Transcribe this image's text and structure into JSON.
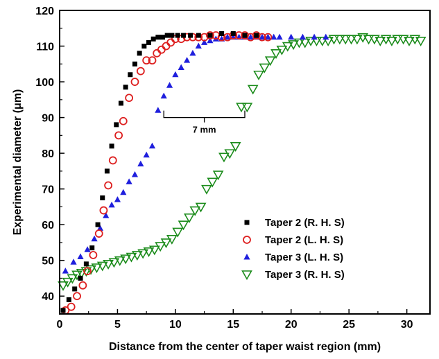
{
  "chart_data": {
    "type": "scatter",
    "xlabel": "Distance from the center of taper waist region (mm)",
    "ylabel": "Experimental diameter (μm)",
    "xlim": [
      0,
      32
    ],
    "ylim": [
      35,
      120
    ],
    "xticks": [
      0,
      5,
      10,
      15,
      20,
      25,
      30
    ],
    "yticks": [
      40,
      50,
      60,
      70,
      80,
      90,
      100,
      110,
      120
    ],
    "grid": false,
    "legend_position": "bottom-right",
    "annotation": {
      "text": "7 mm",
      "x_start": 9,
      "x_end": 16,
      "y": 90
    },
    "series": [
      {
        "name": "Taper 2 (R. H. S)",
        "marker": "filled-square",
        "color": "#000000",
        "x": [
          0.3,
          0.8,
          1.3,
          1.8,
          2.3,
          2.8,
          3.3,
          3.7,
          4.1,
          4.5,
          4.9,
          5.3,
          5.7,
          6.1,
          6.5,
          6.9,
          7.3,
          7.7,
          8.1,
          8.5,
          8.9,
          9.3,
          9.7,
          10.2,
          10.7,
          11.3,
          12,
          13,
          14,
          15,
          16,
          17
        ],
        "y": [
          36,
          39,
          42,
          45,
          49,
          53.5,
          60,
          67.5,
          75,
          82,
          88,
          94,
          98.5,
          102,
          105,
          108,
          110,
          111,
          112,
          112.5,
          112.5,
          113,
          113,
          113,
          113,
          113,
          113,
          113,
          113.5,
          113.5,
          113,
          113
        ]
      },
      {
        "name": "Taper 2 (L. H. S)",
        "marker": "open-circle",
        "color": "#dd1f1f",
        "x": [
          0.5,
          1,
          1.5,
          2,
          2.4,
          2.9,
          3.4,
          3.8,
          4.2,
          4.6,
          5.1,
          5.5,
          6,
          6.5,
          7,
          7.5,
          8,
          8.4,
          8.8,
          9.2,
          9.6,
          10,
          10.5,
          11,
          11.5,
          12,
          12.5,
          13,
          13.5,
          14,
          14.5,
          15,
          15.5,
          16,
          16.5,
          17,
          17.5,
          18
        ],
        "y": [
          36,
          37,
          40,
          43,
          47,
          51.5,
          57.5,
          64,
          71,
          78,
          85,
          89,
          95.5,
          100,
          103,
          106,
          106,
          108,
          109,
          110,
          111,
          112,
          112,
          112.5,
          112.5,
          112.5,
          112.5,
          113,
          113,
          112.5,
          112.5,
          113,
          113,
          113,
          112.5,
          113,
          112.5,
          112.5
        ]
      },
      {
        "name": "Taper 3 (L. H. S)",
        "marker": "filled-triangle",
        "color": "#1f1fdd",
        "x": [
          0.5,
          1.2,
          1.8,
          2.4,
          3,
          3.5,
          4,
          4.5,
          5,
          5.5,
          6,
          6.5,
          7,
          7.5,
          8,
          8.5,
          9,
          9.5,
          10,
          10.5,
          11,
          11.5,
          12,
          12.5,
          13,
          13.5,
          14,
          14.5,
          15,
          15.5,
          16,
          16.5,
          17,
          17.5,
          18,
          18.5,
          19,
          20,
          21,
          22,
          23
        ],
        "y": [
          47,
          49.5,
          51,
          53,
          56,
          59,
          62.5,
          65.5,
          67,
          69,
          72,
          74,
          77,
          79.5,
          82,
          92,
          96,
          99,
          102,
          104,
          106,
          108,
          110,
          111,
          111.5,
          112,
          112,
          112.5,
          112.5,
          112.5,
          112.5,
          112.5,
          112.5,
          112.5,
          112.5,
          112.5,
          112.5,
          112.5,
          112.5,
          112.5,
          112.5
        ]
      },
      {
        "name": "Taper 3 (R. H. S)",
        "marker": "open-triangle-down",
        "color": "#1c8c1c",
        "x": [
          0.3,
          0.7,
          1.1,
          1.5,
          1.9,
          2.3,
          2.7,
          3.2,
          3.7,
          4.2,
          4.7,
          5.2,
          5.7,
          6.2,
          6.7,
          7.2,
          7.7,
          8.2,
          8.7,
          9.2,
          9.7,
          10.2,
          10.7,
          11.2,
          11.7,
          12.2,
          12.7,
          13.2,
          13.7,
          14.2,
          14.7,
          15.2,
          15.7,
          16.2,
          16.7,
          17.2,
          17.7,
          18.2,
          18.7,
          19.2,
          19.7,
          20.2,
          20.7,
          21.2,
          21.7,
          22.2,
          22.7,
          23.2,
          23.7,
          24.2,
          24.7,
          25.2,
          25.7,
          26.2,
          26.7,
          27.2,
          27.7,
          28.2,
          28.7,
          29.2,
          29.7,
          30.2,
          30.7,
          31.2
        ],
        "y": [
          43,
          44,
          45,
          46,
          46.5,
          47,
          47.5,
          48,
          48.5,
          49,
          49.5,
          50,
          50.5,
          51,
          51.5,
          52,
          52.5,
          53,
          54,
          55,
          56,
          58,
          60,
          62,
          64,
          65,
          70,
          72,
          74,
          79,
          80,
          82,
          93,
          93,
          98,
          102,
          104,
          106,
          108,
          109,
          110,
          110.5,
          111,
          111,
          111.5,
          111.5,
          111.5,
          111.5,
          112,
          112,
          112,
          112,
          112,
          112.5,
          112,
          112,
          111.5,
          112,
          111.5,
          112,
          112,
          111.5,
          112,
          111.5
        ]
      }
    ]
  }
}
